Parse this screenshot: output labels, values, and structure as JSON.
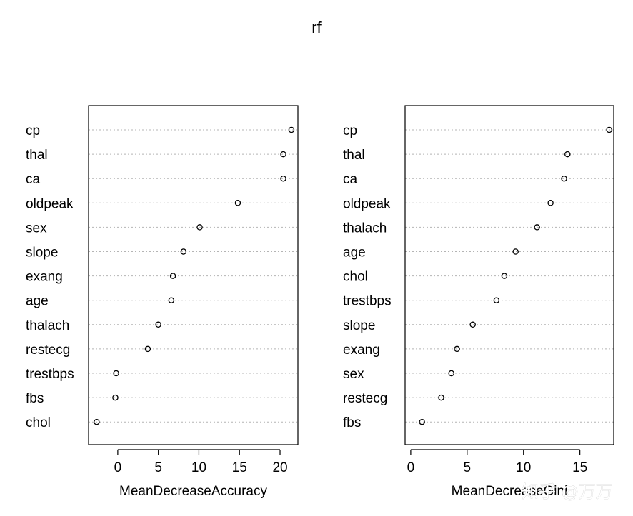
{
  "chart_data": {
    "title": "rf",
    "type": "dotchart",
    "panels": [
      {
        "xlabel": "MeanDecreaseAccuracy",
        "xlim": [
          -3.6,
          22.2
        ],
        "xticks": [
          0,
          5,
          10,
          15,
          20
        ],
        "grid": "dotted horizontal",
        "categories": [
          "cp",
          "thal",
          "ca",
          "oldpeak",
          "sex",
          "slope",
          "exang",
          "age",
          "thalach",
          "restecg",
          "trestbps",
          "fbs",
          "chol"
        ],
        "values": [
          21.4,
          20.4,
          20.4,
          14.8,
          10.1,
          8.1,
          6.8,
          6.6,
          5.0,
          3.7,
          -0.2,
          -0.3,
          -2.6
        ]
      },
      {
        "xlabel": "MeanDecreaseGini",
        "xlim": [
          -0.5,
          18.0
        ],
        "xticks": [
          0,
          5,
          10,
          15
        ],
        "grid": "dotted horizontal",
        "categories": [
          "cp",
          "thal",
          "ca",
          "oldpeak",
          "thalach",
          "age",
          "chol",
          "trestbps",
          "slope",
          "exang",
          "sex",
          "restecg",
          "fbs"
        ],
        "values": [
          17.6,
          13.9,
          13.6,
          12.4,
          11.2,
          9.3,
          8.3,
          7.6,
          5.5,
          4.1,
          3.6,
          2.7,
          1.0
        ]
      }
    ]
  },
  "watermark": {
    "text": "知乎 @万万"
  }
}
